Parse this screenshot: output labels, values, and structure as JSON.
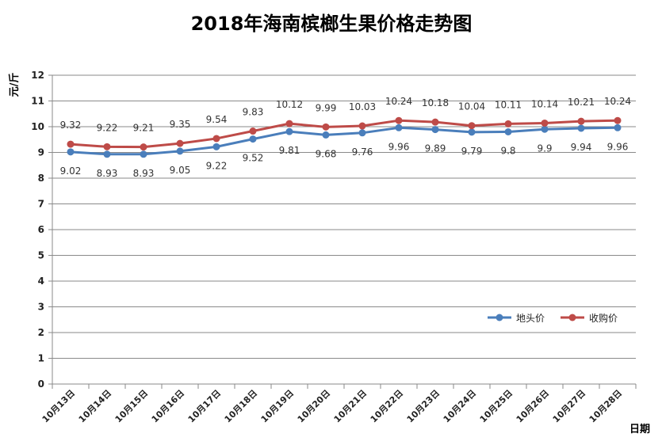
{
  "chart_data": {
    "type": "line",
    "title": "2018年海南槟榔生果价格走势图",
    "xlabel": "日期",
    "ylabel": "元/斤",
    "ylim": [
      0,
      12
    ],
    "yticks": [
      0,
      1,
      2,
      3,
      4,
      5,
      6,
      7,
      8,
      9,
      10,
      11,
      12
    ],
    "grid": true,
    "legend_position": "right",
    "categories": [
      "10月13日",
      "10月14日",
      "10月15日",
      "10月16日",
      "10月17日",
      "10月18日",
      "10月19日",
      "10月20日",
      "10月21日",
      "10月22日",
      "10月23日",
      "10月24日",
      "10月25日",
      "10月26日",
      "10月27日",
      "10月28日"
    ],
    "series": [
      {
        "name": "地头价",
        "color": "#4a7ebb",
        "values": [
          9.02,
          8.93,
          8.93,
          9.05,
          9.22,
          9.52,
          9.81,
          9.68,
          9.76,
          9.96,
          9.89,
          9.79,
          9.8,
          9.9,
          9.94,
          9.96
        ],
        "value_labels": [
          "9.02",
          "8.93",
          "8.93",
          "9.05",
          "9.22",
          "9.52",
          "9.81",
          "9.68",
          "9.76",
          "9.96",
          "9.89",
          "9.79",
          "9.8",
          "9.9",
          "9.94",
          "9.96"
        ]
      },
      {
        "name": "收购价",
        "color": "#be4b48",
        "values": [
          9.32,
          9.22,
          9.21,
          9.35,
          9.54,
          9.83,
          10.12,
          9.99,
          10.03,
          10.24,
          10.18,
          10.04,
          10.11,
          10.14,
          10.21,
          10.24
        ],
        "value_labels": [
          "9.32",
          "9.22",
          "9.21",
          "9.35",
          "9.54",
          "9.83",
          "10.12",
          "9.99",
          "10.03",
          "10.24",
          "10.18",
          "10.04",
          "10.11",
          "10.14",
          "10.21",
          "10.24"
        ]
      }
    ]
  }
}
